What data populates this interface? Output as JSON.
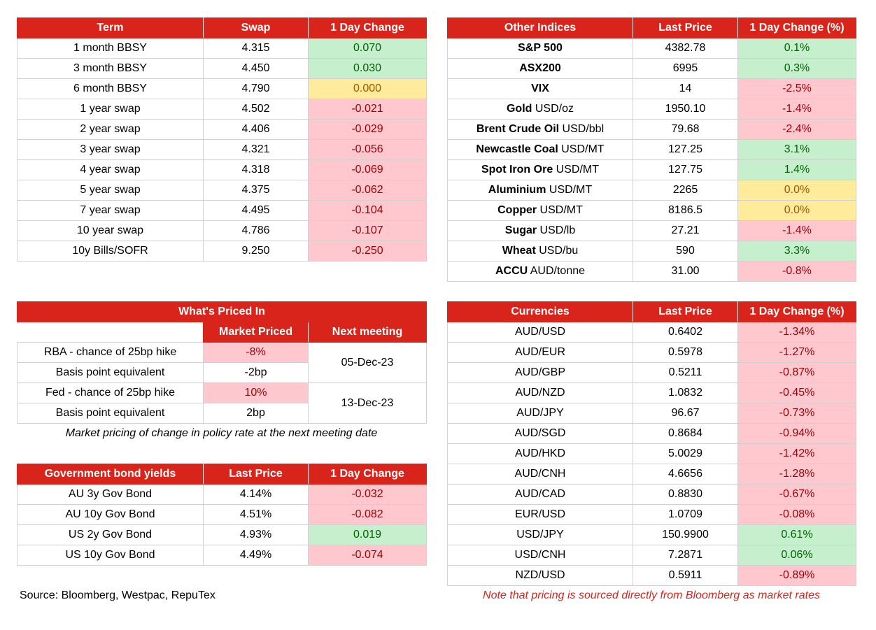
{
  "swaps": {
    "headers": [
      "Term",
      "Swap",
      "1 Day Change"
    ],
    "rows": [
      {
        "term": "1 month BBSY",
        "swap": "4.315",
        "change": "0.070",
        "status": "pos"
      },
      {
        "term": "3 month BBSY",
        "swap": "4.450",
        "change": "0.030",
        "status": "pos"
      },
      {
        "term": "6 month BBSY",
        "swap": "4.790",
        "change": "0.000",
        "status": "neu"
      },
      {
        "term": "1 year swap",
        "swap": "4.502",
        "change": "-0.021",
        "status": "neg"
      },
      {
        "term": "2 year swap",
        "swap": "4.406",
        "change": "-0.029",
        "status": "neg"
      },
      {
        "term": "3 year swap",
        "swap": "4.321",
        "change": "-0.056",
        "status": "neg"
      },
      {
        "term": "4 year swap",
        "swap": "4.318",
        "change": "-0.069",
        "status": "neg"
      },
      {
        "term": "5 year swap",
        "swap": "4.375",
        "change": "-0.062",
        "status": "neg"
      },
      {
        "term": "7 year swap",
        "swap": "4.495",
        "change": "-0.104",
        "status": "neg"
      },
      {
        "term": "10 year swap",
        "swap": "4.786",
        "change": "-0.107",
        "status": "neg"
      },
      {
        "term": "10y Bills/SOFR",
        "swap": "9.250",
        "change": "-0.250",
        "status": "neg"
      }
    ]
  },
  "indices": {
    "headers": [
      "Other Indices",
      "Last Price",
      "1 Day Change (%)"
    ],
    "rows": [
      {
        "name": "S&P 500",
        "unit": "",
        "price": "4382.78",
        "change": "0.1%",
        "status": "pos"
      },
      {
        "name": "ASX200",
        "unit": "",
        "price": "6995",
        "change": "0.3%",
        "status": "pos"
      },
      {
        "name": "VIX",
        "unit": "",
        "price": "14",
        "change": "-2.5%",
        "status": "neg"
      },
      {
        "name": "Gold",
        "unit": " USD/oz",
        "price": "1950.10",
        "change": "-1.4%",
        "status": "neg"
      },
      {
        "name": "Brent Crude Oil",
        "unit": " USD/bbl",
        "price": "79.68",
        "change": "-2.4%",
        "status": "neg"
      },
      {
        "name": "Newcastle Coal",
        "unit": " USD/MT",
        "price": "127.25",
        "change": "3.1%",
        "status": "pos"
      },
      {
        "name": "Spot Iron Ore",
        "unit": " USD/MT",
        "price": "127.75",
        "change": "1.4%",
        "status": "pos"
      },
      {
        "name": "Aluminium",
        "unit": " USD/MT",
        "price": "2265",
        "change": "0.0%",
        "status": "neu"
      },
      {
        "name": "Copper",
        "unit": " USD/MT",
        "price": "8186.5",
        "change": "0.0%",
        "status": "neu"
      },
      {
        "name": "Sugar",
        "unit": " USD/lb",
        "price": "27.21",
        "change": "-1.4%",
        "status": "neg"
      },
      {
        "name": "Wheat",
        "unit": " USD/bu",
        "price": "590",
        "change": "3.3%",
        "status": "pos"
      },
      {
        "name": "ACCU",
        "unit": " AUD/tonne",
        "price": "31.00",
        "change": "-0.8%",
        "status": "neg"
      }
    ]
  },
  "priced": {
    "title": "What's Priced In",
    "col_market": "Market Priced",
    "col_meeting": "Next meeting",
    "rba_label": "RBA - chance of 25bp hike",
    "rba_value": "-8%",
    "rba_bp_label": "Basis point equivalent",
    "rba_bp": "-2bp",
    "rba_meeting": "05-Dec-23",
    "fed_label": "Fed - chance of 25bp hike",
    "fed_value": "10%",
    "fed_bp_label": "Basis point equivalent",
    "fed_bp": "2bp",
    "fed_meeting": "13-Dec-23",
    "note": "Market pricing of change in policy rate at the next meeting date"
  },
  "bonds": {
    "headers": [
      "Government bond yields",
      "Last Price",
      "1 Day Change"
    ],
    "rows": [
      {
        "name": "AU 3y Gov Bond",
        "price": "4.14%",
        "change": "-0.032",
        "status": "neg"
      },
      {
        "name": "AU 10y Gov Bond",
        "price": "4.51%",
        "change": "-0.082",
        "status": "neg"
      },
      {
        "name": "US 2y Gov Bond",
        "price": "4.93%",
        "change": "0.019",
        "status": "pos"
      },
      {
        "name": "US 10y Gov Bond",
        "price": "4.49%",
        "change": "-0.074",
        "status": "neg"
      }
    ]
  },
  "currencies": {
    "headers": [
      "Currencies",
      "Last Price",
      "1 Day Change (%)"
    ],
    "rows": [
      {
        "pair": "AUD/USD",
        "price": "0.6402",
        "change": "-1.34%",
        "status": "neg"
      },
      {
        "pair": "AUD/EUR",
        "price": "0.5978",
        "change": "-1.27%",
        "status": "neg"
      },
      {
        "pair": "AUD/GBP",
        "price": "0.5211",
        "change": "-0.87%",
        "status": "neg"
      },
      {
        "pair": "AUD/NZD",
        "price": "1.0832",
        "change": "-0.45%",
        "status": "neg"
      },
      {
        "pair": "AUD/JPY",
        "price": "96.67",
        "change": "-0.73%",
        "status": "neg"
      },
      {
        "pair": "AUD/SGD",
        "price": "0.8684",
        "change": "-0.94%",
        "status": "neg"
      },
      {
        "pair": "AUD/HKD",
        "price": "5.0029",
        "change": "-1.42%",
        "status": "neg"
      },
      {
        "pair": "AUD/CNH",
        "price": "4.6656",
        "change": "-1.28%",
        "status": "neg"
      },
      {
        "pair": "AUD/CAD",
        "price": "0.8830",
        "change": "-0.67%",
        "status": "neg"
      },
      {
        "pair": "EUR/USD",
        "price": "1.0709",
        "change": "-0.08%",
        "status": "neg"
      },
      {
        "pair": "USD/JPY",
        "price": "150.9900",
        "change": "0.61%",
        "status": "pos"
      },
      {
        "pair": "USD/CNH",
        "price": "7.2871",
        "change": "0.06%",
        "status": "pos"
      },
      {
        "pair": "NZD/USD",
        "price": "0.5911",
        "change": "-0.89%",
        "status": "neg"
      }
    ]
  },
  "footer": {
    "source": "Source: Bloomberg, Westpac, RepuTex",
    "pricing_note": "Note that pricing is sourced directly from Bloomberg as market rates"
  },
  "colors": {
    "header_red": "#d9241b",
    "positive_fill": "#c6efce",
    "negative_fill": "#ffc7ce",
    "neutral_fill": "#ffeb9c"
  }
}
